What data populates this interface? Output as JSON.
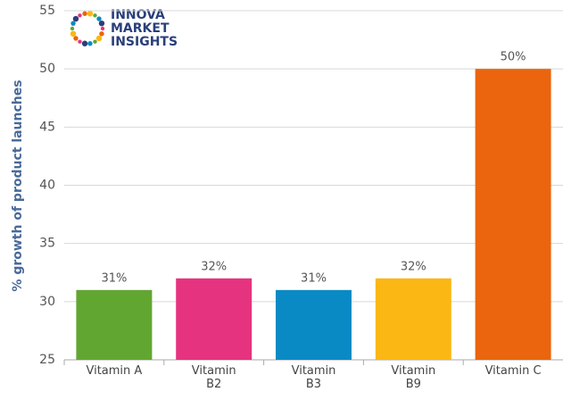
{
  "chart_data": {
    "type": "bar",
    "y_label": "% growth of product launches",
    "logo": [
      "INNOVA",
      "MARKET",
      "INSIGHTS"
    ],
    "categories": [
      "Vitamin A",
      "Vitamin B2",
      "Vitamin B3",
      "Vitamin B9",
      "Vitamin C"
    ],
    "values": [
      31,
      32,
      31,
      32,
      50
    ],
    "value_labels": [
      "31%",
      "32%",
      "31%",
      "32%",
      "50%"
    ],
    "colors": [
      "#62a632",
      "#e6337f",
      "#0a8ac4",
      "#fbb713",
      "#ea650d"
    ],
    "ylim": [
      25,
      55
    ],
    "yticks": [
      25,
      30,
      35,
      40,
      45,
      50,
      55
    ],
    "grid": true
  }
}
